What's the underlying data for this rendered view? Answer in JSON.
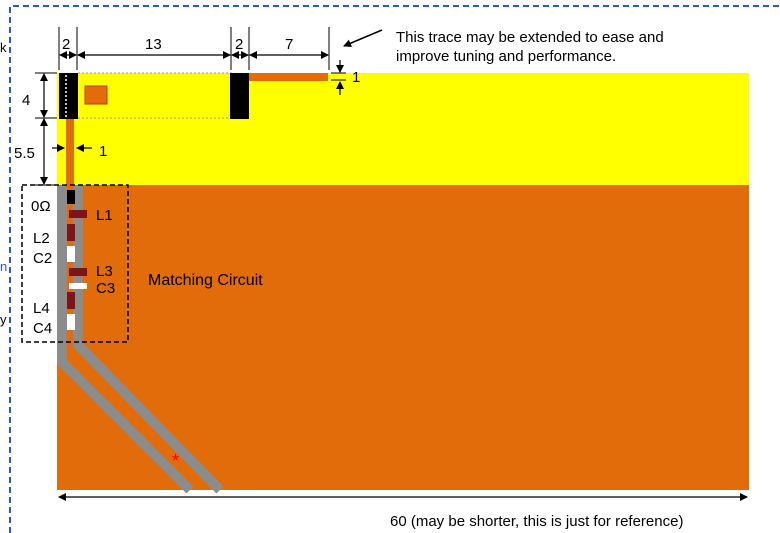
{
  "colors": {
    "board_yellow": "#ffff00",
    "board_orange": "#e36c0a",
    "trace_gray": "#8c8c8c",
    "trace_orange": "#e36c0a",
    "pad_black": "#000000",
    "component_darkred": "#7f1414",
    "frame_blue": "#2f55d4",
    "star_red": "#ff0000"
  },
  "top_dims": [
    "2",
    "13",
    "2",
    "7"
  ],
  "trace_width_dim": "1",
  "left_dims": [
    "4",
    "5.5"
  ],
  "feed_width_dim": "1",
  "note_line1": "This trace may be extended to ease and",
  "note_line2": "improve tuning and performance.",
  "components": {
    "r0": "0Ω",
    "l1": "L1",
    "l2": "L2",
    "c2": "C2",
    "l3": "L3",
    "c3": "C3",
    "l4": "L4",
    "c4": "C4"
  },
  "matching_label": "Matching Circuit",
  "width_note": "60 (may be shorter, this is just for reference)",
  "feed_marker": "*",
  "clipped_fragments": [
    "k",
    "n",
    "y"
  ]
}
